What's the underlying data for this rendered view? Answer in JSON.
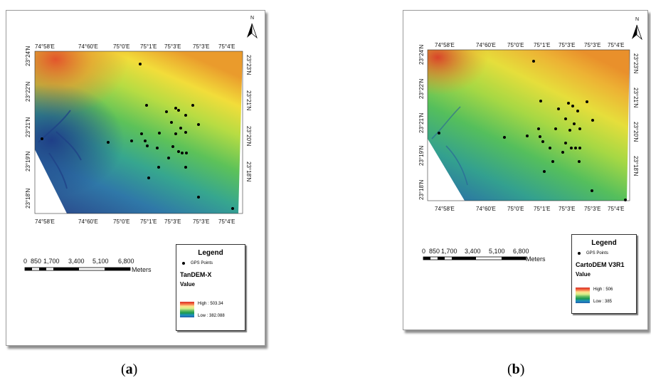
{
  "panels": [
    {
      "id": "a",
      "north_label": "N",
      "lon_ticks": [
        "74°58'E",
        "74°60'E",
        "75°0'E",
        "75°1'E",
        "75°3'E",
        "75°3'E",
        "75°4'E"
      ],
      "lat_ticks_left": [
        "23°24'N",
        "23°22'N",
        "23°21'N",
        "23°19'N",
        "23°18'N"
      ],
      "lat_ticks_right": [
        "23°23'N",
        "23°21'N",
        "23°20'N",
        "23°18'N"
      ],
      "scale_labels": [
        "0",
        "850",
        "1,700",
        "3,400",
        "5,100",
        "6,800"
      ],
      "scale_unit": "Meters",
      "legend": {
        "title": "Legend",
        "point_label": "GPS Points",
        "layer": "TanDEM-X",
        "value_label": "Value",
        "high": "High : 503.34",
        "low": "Low : 382.088"
      },
      "caption_letter": "a"
    },
    {
      "id": "b",
      "north_label": "N",
      "lon_ticks": [
        "74°58'E",
        "74°60'E",
        "75°0'E",
        "75°1'E",
        "75°3'E",
        "75°3'E",
        "75°4'E"
      ],
      "lat_ticks_left": [
        "23°24'N",
        "23°22'N",
        "23°21'N",
        "23°19'N",
        "23°18'N"
      ],
      "lat_ticks_right": [
        "23°23'N",
        "23°21'N",
        "23°20'N",
        "23°18'N"
      ],
      "scale_labels": [
        "0",
        "850",
        "1,700",
        "3,400",
        "5,100",
        "6,800"
      ],
      "scale_unit": "Meters",
      "legend": {
        "title": "Legend",
        "point_label": "GPS Points",
        "layer": "CartoDEM V3R1",
        "value_label": "Value",
        "high": "High : 506",
        "low": "Low : 385"
      },
      "caption_letter": "b"
    }
  ],
  "elevation_colors": [
    "#d73027",
    "#f46d43",
    "#fee08b",
    "#d9ef8b",
    "#66bd63",
    "#1a9850",
    "#1d91c0",
    "#225ea8"
  ],
  "point_color": "#000000"
}
